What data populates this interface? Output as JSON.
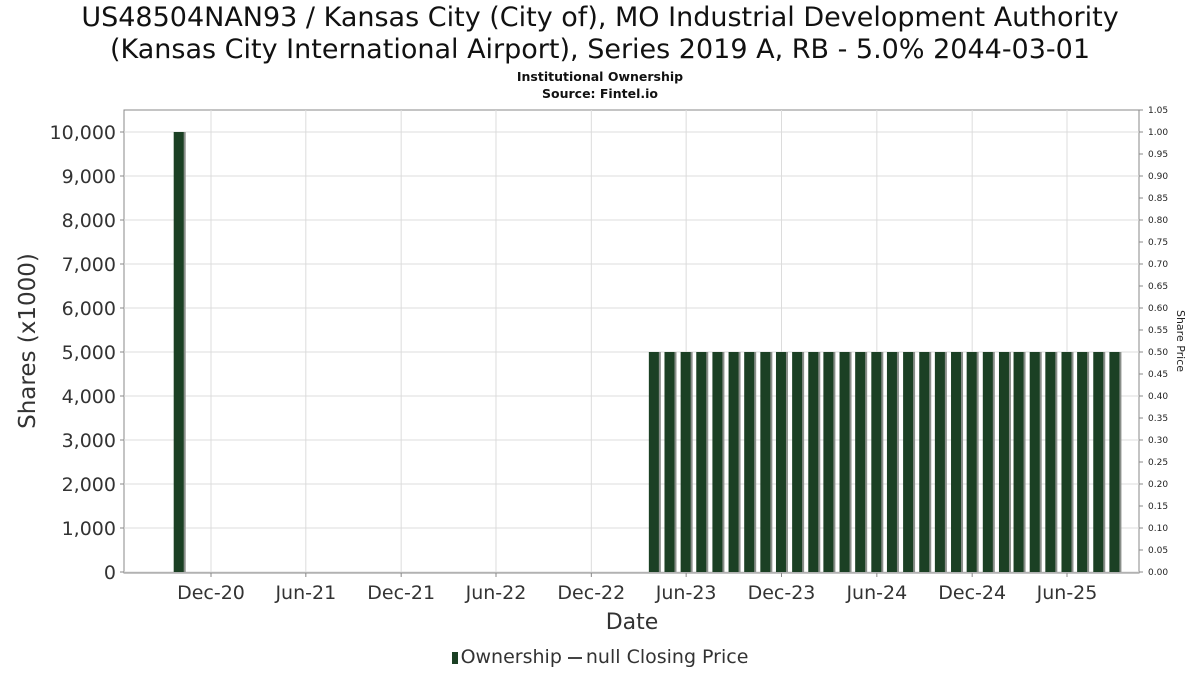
{
  "header": {
    "title_line1": "US48504NAN93 / Kansas City (City of), MO Industrial Development Authority",
    "title_line2": "(Kansas City International Airport), Series 2019 A, RB - 5.0% 2044-03-01",
    "subtitle_line1": "Institutional Ownership",
    "subtitle_line2": "Source: Fintel.io"
  },
  "legend": {
    "ownership": "Ownership",
    "price": "null Closing Price"
  },
  "colors": {
    "bar": "#1b4024",
    "bar_shadow": "#8a8f8a",
    "grid": "#dcdcdc",
    "axis": "#888888"
  },
  "chart_data": {
    "type": "bar",
    "xlabel": "Date",
    "ylabel": "Shares (x1000)",
    "y2label": "Share Price",
    "ylim": [
      0,
      10500
    ],
    "y2lim": [
      0,
      1.05
    ],
    "grid": true,
    "legend_position": "bottom",
    "y_ticks": [
      "0",
      "1,000",
      "2,000",
      "3,000",
      "4,000",
      "5,000",
      "6,000",
      "7,000",
      "8,000",
      "9,000",
      "10,000"
    ],
    "y2_ticks": [
      "0.00",
      "0.05",
      "0.10",
      "0.15",
      "0.20",
      "0.25",
      "0.30",
      "0.35",
      "0.40",
      "0.45",
      "0.50",
      "0.55",
      "0.60",
      "0.65",
      "0.70",
      "0.75",
      "0.80",
      "0.85",
      "0.90",
      "0.95",
      "1.00",
      "1.05"
    ],
    "x_ticks": [
      "Dec-20",
      "Jun-21",
      "Dec-21",
      "Jun-22",
      "Dec-22",
      "Jun-23",
      "Dec-23",
      "Jun-24",
      "Dec-24",
      "Jun-25"
    ],
    "series": [
      {
        "name": "Ownership",
        "points": [
          {
            "date": "2020-09-30",
            "value": 10000
          },
          {
            "date": "2023-03-31",
            "value": 5000
          },
          {
            "date": "2023-04-30",
            "value": 5000
          },
          {
            "date": "2023-05-31",
            "value": 5000
          },
          {
            "date": "2023-06-30",
            "value": 5000
          },
          {
            "date": "2023-07-31",
            "value": 5000
          },
          {
            "date": "2023-08-31",
            "value": 5000
          },
          {
            "date": "2023-09-30",
            "value": 5000
          },
          {
            "date": "2023-10-31",
            "value": 5000
          },
          {
            "date": "2023-11-30",
            "value": 5000
          },
          {
            "date": "2023-12-31",
            "value": 5000
          },
          {
            "date": "2024-01-31",
            "value": 5000
          },
          {
            "date": "2024-02-29",
            "value": 5000
          },
          {
            "date": "2024-03-31",
            "value": 5000
          },
          {
            "date": "2024-04-30",
            "value": 5000
          },
          {
            "date": "2024-05-31",
            "value": 5000
          },
          {
            "date": "2024-06-30",
            "value": 5000
          },
          {
            "date": "2024-07-31",
            "value": 5000
          },
          {
            "date": "2024-08-31",
            "value": 5000
          },
          {
            "date": "2024-09-30",
            "value": 5000
          },
          {
            "date": "2024-10-31",
            "value": 5000
          },
          {
            "date": "2024-11-30",
            "value": 5000
          },
          {
            "date": "2024-12-31",
            "value": 5000
          },
          {
            "date": "2025-01-31",
            "value": 5000
          },
          {
            "date": "2025-02-28",
            "value": 5000
          },
          {
            "date": "2025-03-31",
            "value": 5000
          },
          {
            "date": "2025-04-30",
            "value": 5000
          },
          {
            "date": "2025-05-31",
            "value": 5000
          },
          {
            "date": "2025-06-30",
            "value": 5000
          },
          {
            "date": "2025-07-31",
            "value": 5000
          },
          {
            "date": "2025-08-31",
            "value": 5000
          }
        ]
      }
    ]
  }
}
